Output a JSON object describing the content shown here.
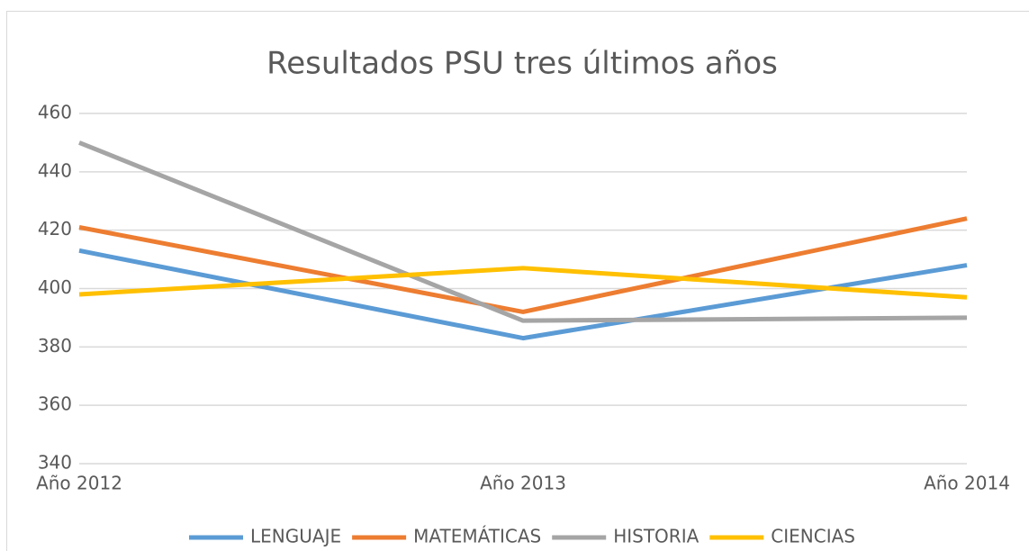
{
  "chart_data": {
    "type": "line",
    "title": "Resultados PSU tres últimos años",
    "categories": [
      "Año 2012",
      "Año 2013",
      "Año 2014"
    ],
    "series": [
      {
        "name": "LENGUAJE",
        "color": "#5b9bd5",
        "values": [
          413,
          383,
          408
        ]
      },
      {
        "name": "MATEMÁTICAS",
        "color": "#ed7d31",
        "values": [
          421,
          392,
          424
        ]
      },
      {
        "name": "HISTORIA",
        "color": "#a5a5a5",
        "values": [
          450,
          389,
          390
        ]
      },
      {
        "name": "CIENCIAS",
        "color": "#ffc000",
        "values": [
          398,
          407,
          397
        ]
      }
    ],
    "ylim": [
      340,
      460
    ],
    "yticks": [
      340,
      360,
      380,
      400,
      420,
      440,
      460
    ],
    "grid": true,
    "legend": "bottom"
  }
}
